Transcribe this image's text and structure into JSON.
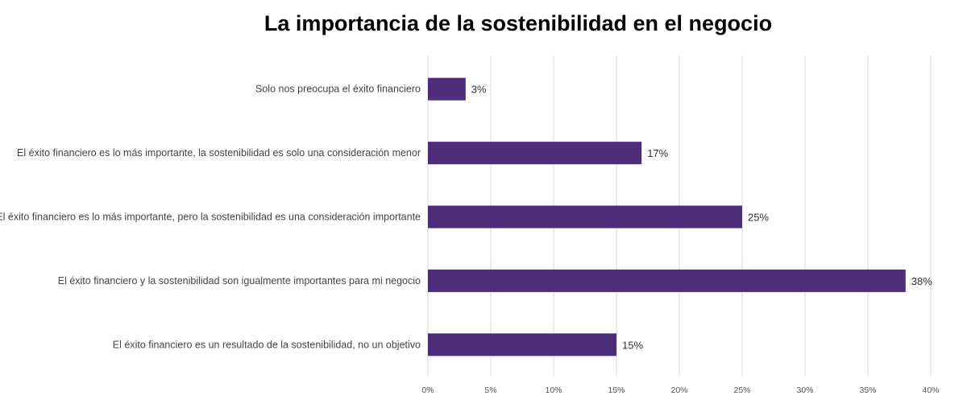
{
  "chart_data": {
    "type": "bar",
    "orientation": "horizontal",
    "title": "La importancia de la sostenibilidad en el negocio",
    "categories": [
      "Solo nos preocupa el éxito financiero",
      "El éxito financiero es lo más importante, la sostenibilidad es solo una consideración menor",
      "El éxito financiero es lo más importante, pero la sostenibilidad es una consideración importante",
      "El éxito financiero y la sostenibilidad son igualmente importantes para mi negocio",
      "El éxito financiero es un resultado de la sostenibilidad, no un objetivo"
    ],
    "values": [
      3,
      17,
      25,
      38,
      15
    ],
    "data_labels": [
      "3%",
      "17%",
      "25%",
      "38%",
      "15%"
    ],
    "xlim": [
      0,
      40
    ],
    "x_ticks": [
      0,
      5,
      10,
      15,
      20,
      25,
      30,
      35,
      40
    ],
    "x_tick_labels": [
      "0%",
      "5%",
      "10%",
      "15%",
      "20%",
      "25%",
      "30%",
      "35%",
      "40%"
    ],
    "grid": "vertical",
    "bar_color": "#4e2d7c"
  }
}
